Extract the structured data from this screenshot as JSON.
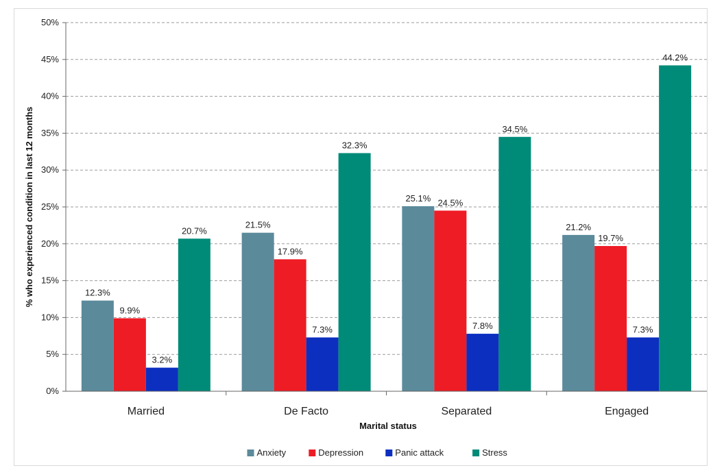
{
  "chart_data": {
    "type": "bar",
    "categories": [
      "Married",
      "De Facto",
      "Separated",
      "Engaged"
    ],
    "series": [
      {
        "name": "Anxiety",
        "color": "#5b8a9b",
        "values": [
          12.3,
          21.5,
          25.1,
          21.2
        ],
        "labels": [
          "12.3%",
          "21.5%",
          "25.1%",
          "21.2%"
        ]
      },
      {
        "name": "Depression",
        "color": "#ee1c25",
        "values": [
          9.9,
          17.9,
          24.5,
          19.7
        ],
        "labels": [
          "9.9%",
          "17.9%",
          "24.5%",
          "19.7%"
        ]
      },
      {
        "name": "Panic attack",
        "color": "#0c2fc0",
        "values": [
          3.2,
          7.3,
          7.8,
          7.3
        ],
        "labels": [
          "3.2%",
          "7.3%",
          "7.8%",
          "7.3%"
        ]
      },
      {
        "name": "Stress",
        "color": "#008b78",
        "values": [
          20.7,
          32.3,
          34.5,
          44.2
        ],
        "labels": [
          "20.7%",
          "32.3%",
          "34.5%",
          "44.2%"
        ]
      }
    ],
    "xlabel": "Marital status",
    "ylabel": "% who experienced condition in last 12 months",
    "ylim": [
      0,
      50
    ],
    "yticks": [
      0,
      5,
      10,
      15,
      20,
      25,
      30,
      35,
      40,
      45,
      50
    ],
    "ytick_labels": [
      "0%",
      "5%",
      "10%",
      "15%",
      "20%",
      "25%",
      "30%",
      "35%",
      "40%",
      "45%",
      "50%"
    ],
    "grid": "horizontal-dashed",
    "legend_position": "bottom"
  }
}
